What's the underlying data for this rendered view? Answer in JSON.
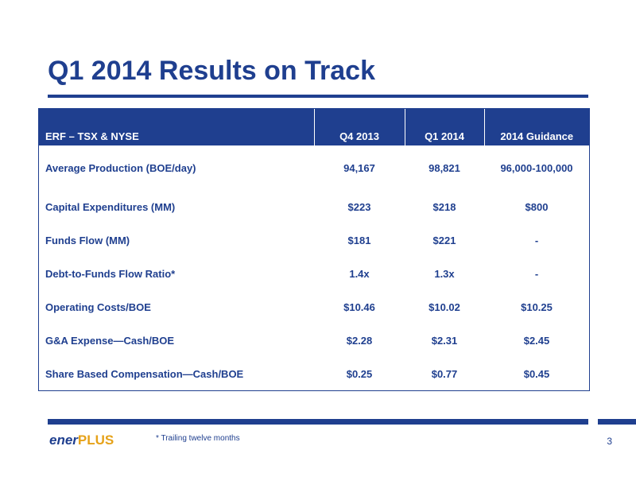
{
  "slide": {
    "title": "Q1 2014 Results on Track",
    "page_number": "3",
    "footnote": "* Trailing twelve months",
    "logo": {
      "part1": "ener",
      "part2": "PLUS"
    }
  },
  "table": {
    "headers": [
      "ERF – TSX & NYSE",
      "Q4 2013",
      "Q1 2014",
      "2014 Guidance"
    ],
    "rows": [
      {
        "label": "Average Production (BOE/day)",
        "q4_2013": "94,167",
        "q1_2014": "98,821",
        "guidance_2014": "96,000-100,000"
      },
      {
        "label": "Capital Expenditures (MM)",
        "q4_2013": "$223",
        "q1_2014": "$218",
        "guidance_2014": "$800"
      },
      {
        "label": "Funds Flow (MM)",
        "q4_2013": "$181",
        "q1_2014": "$221",
        "guidance_2014": "-"
      },
      {
        "label": "Debt-to-Funds Flow Ratio*",
        "q4_2013": "1.4x",
        "q1_2014": "1.3x",
        "guidance_2014": "-"
      },
      {
        "label": "Operating Costs/BOE",
        "q4_2013": "$10.46",
        "q1_2014": "$10.02",
        "guidance_2014": "$10.25"
      },
      {
        "label": "G&A Expense—Cash/BOE",
        "q4_2013": "$2.28",
        "q1_2014": "$2.31",
        "guidance_2014": "$2.45"
      },
      {
        "label": "Share Based Compensation—Cash/BOE",
        "q4_2013": "$0.25",
        "q1_2014": "$0.77",
        "guidance_2014": "$0.45"
      }
    ]
  },
  "colors": {
    "brand_blue": "#1f3f8f",
    "brand_gold": "#e6a219"
  }
}
